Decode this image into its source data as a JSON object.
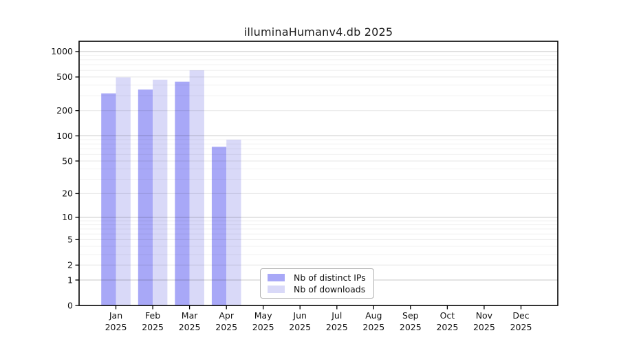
{
  "chart_data": {
    "type": "bar",
    "title": "illuminaHumanv4.db 2025",
    "categories": [
      "Jan",
      "Feb",
      "Mar",
      "Apr",
      "May",
      "Jun",
      "Jul",
      "Aug",
      "Sep",
      "Oct",
      "Nov",
      "Dec"
    ],
    "category_year": "2025",
    "series": [
      {
        "name": "Nb of distinct IPs",
        "color": "#A8A8F7",
        "values": [
          320,
          355,
          440,
          74,
          0,
          0,
          0,
          0,
          0,
          0,
          0,
          0
        ]
      },
      {
        "name": "Nb of downloads",
        "color": "#D9D9F8",
        "values": [
          495,
          465,
          600,
          90,
          0,
          0,
          0,
          0,
          0,
          0,
          0,
          0
        ]
      }
    ],
    "yaxis": {
      "scale": "log1p",
      "ticks": [
        0,
        1,
        2,
        5,
        10,
        20,
        50,
        100,
        200,
        500,
        1000
      ],
      "minor_ticks": [
        3,
        4,
        6,
        7,
        8,
        9,
        30,
        40,
        60,
        70,
        80,
        90,
        300,
        400,
        600,
        700,
        800,
        900
      ],
      "range": [
        0,
        1300
      ]
    },
    "xlabel": "",
    "ylabel": "",
    "grid": true,
    "legend": {
      "position": "bottom-center",
      "entries": [
        "Nb of distinct IPs",
        "Nb of downloads"
      ]
    }
  },
  "style": {
    "background": "#ffffff",
    "frame_color": "#000000",
    "text_color": "#111111",
    "grid_minor": "rgba(0,0,0,0.055)",
    "grid_labeled": "rgba(0,0,0,0.10)",
    "grid_decade": "rgba(0,0,0,0.22)"
  }
}
